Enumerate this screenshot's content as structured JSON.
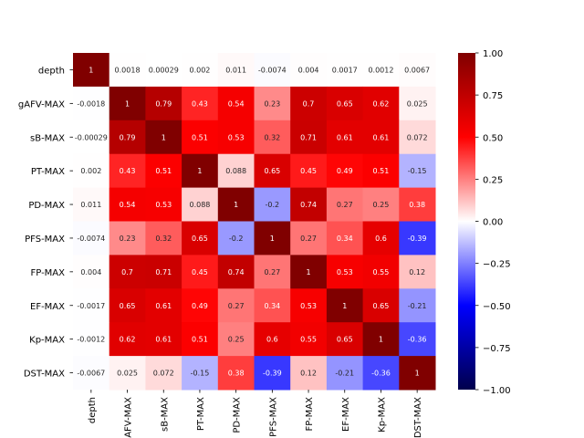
{
  "chart_data": {
    "type": "heatmap",
    "title": "",
    "xlabel": "",
    "ylabel": "",
    "colormap": "seismic",
    "vmin": -1.0,
    "vmax": 1.0,
    "x_tick_labels": [
      "depth",
      "gAFV-MAX",
      "sB-MAX",
      "PT-MAX",
      "PD-MAX",
      "PFS-MAX",
      "FP-MAX",
      "EF-MAX",
      "Kp-MAX",
      "DST-MAX"
    ],
    "y_tick_labels": [
      "depth",
      "gAFV-MAX",
      "sB-MAX",
      "PT-MAX",
      "PD-MAX",
      "PFS-MAX",
      "FP-MAX",
      "EF-MAX",
      "Kp-MAX",
      "DST-MAX"
    ],
    "values": [
      [
        1,
        0.0018,
        0.00029,
        0.002,
        0.011,
        -0.0074,
        0.004,
        0.0017,
        0.0012,
        0.0067
      ],
      [
        -0.0018,
        1,
        0.79,
        0.43,
        0.54,
        0.23,
        0.7,
        0.65,
        0.62,
        0.025
      ],
      [
        -0.00029,
        0.79,
        1,
        0.51,
        0.53,
        0.32,
        0.71,
        0.61,
        0.61,
        0.072
      ],
      [
        0.002,
        0.43,
        0.51,
        1,
        0.088,
        0.65,
        0.45,
        0.49,
        0.51,
        -0.15
      ],
      [
        0.011,
        0.54,
        0.53,
        0.088,
        1,
        -0.2,
        0.74,
        0.27,
        0.25,
        0.38
      ],
      [
        -0.0074,
        0.23,
        0.32,
        0.65,
        -0.2,
        1,
        0.27,
        0.34,
        0.6,
        -0.39
      ],
      [
        0.004,
        0.7,
        0.71,
        0.45,
        0.74,
        0.27,
        1,
        0.53,
        0.55,
        0.12
      ],
      [
        -0.0017,
        0.65,
        0.61,
        0.49,
        0.27,
        0.34,
        0.53,
        1,
        0.65,
        -0.21
      ],
      [
        -0.0012,
        0.62,
        0.61,
        0.51,
        0.25,
        0.6,
        0.55,
        0.65,
        1,
        -0.36
      ],
      [
        -0.0067,
        0.025,
        0.072,
        -0.15,
        0.38,
        -0.39,
        0.12,
        -0.21,
        -0.36,
        1
      ]
    ],
    "annotations": [
      [
        "1",
        "0.0018",
        "0.00029",
        "0.002",
        "0.011",
        "-0.0074",
        "0.004",
        "0.0017",
        "0.0012",
        "0.0067"
      ],
      [
        "-0.0018",
        "1",
        "0.79",
        "0.43",
        "0.54",
        "0.23",
        "0.7",
        "0.65",
        "0.62",
        "0.025"
      ],
      [
        "-0.00029",
        "0.79",
        "1",
        "0.51",
        "0.53",
        "0.32",
        "0.71",
        "0.61",
        "0.61",
        "0.072"
      ],
      [
        "0.002",
        "0.43",
        "0.51",
        "1",
        "0.088",
        "0.65",
        "0.45",
        "0.49",
        "0.51",
        "-0.15"
      ],
      [
        "0.011",
        "0.54",
        "0.53",
        "0.088",
        "1",
        "-0.2",
        "0.74",
        "0.27",
        "0.25",
        "0.38"
      ],
      [
        "-0.0074",
        "0.23",
        "0.32",
        "0.65",
        "-0.2",
        "1",
        "0.27",
        "0.34",
        "0.6",
        "-0.39"
      ],
      [
        "0.004",
        "0.7",
        "0.71",
        "0.45",
        "0.74",
        "0.27",
        "1",
        "0.53",
        "0.55",
        "0.12"
      ],
      [
        "-0.0017",
        "0.65",
        "0.61",
        "0.49",
        "0.27",
        "0.34",
        "0.53",
        "1",
        "0.65",
        "-0.21"
      ],
      [
        "-0.0012",
        "0.62",
        "0.61",
        "0.51",
        "0.25",
        "0.6",
        "0.55",
        "0.65",
        "1",
        "-0.36"
      ],
      [
        "-0.0067",
        "0.025",
        "0.072",
        "-0.15",
        "0.38",
        "-0.39",
        "0.12",
        "-0.21",
        "-0.36",
        "1"
      ]
    ],
    "colorbar": {
      "ticks": [
        1.0,
        0.75,
        0.5,
        0.25,
        0.0,
        -0.25,
        -0.5,
        -0.75,
        -1.0
      ],
      "tick_labels": [
        "1.00",
        "0.75",
        "0.50",
        "0.25",
        "0.00",
        "−0.25",
        "−0.50",
        "−0.75",
        "−1.00"
      ]
    }
  }
}
